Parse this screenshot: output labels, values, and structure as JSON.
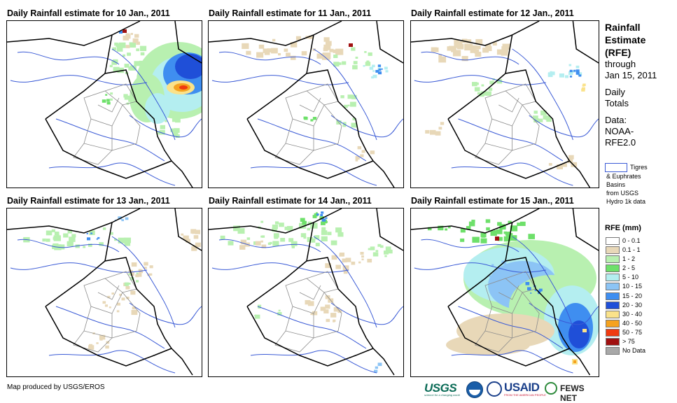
{
  "panels": [
    {
      "title": "Daily Rainfall estimate for 10 Jan., 2011"
    },
    {
      "title": "Daily Rainfall estimate for 11 Jan., 2011"
    },
    {
      "title": "Daily Rainfall estimate for 12 Jan., 2011"
    },
    {
      "title": "Daily Rainfall estimate for 13 Jan., 2011"
    },
    {
      "title": "Daily Rainfall estimate for 14 Jan., 2011"
    },
    {
      "title": "Daily Rainfall estimate for 15 Jan., 2011"
    }
  ],
  "side": {
    "title1": "Rainfall",
    "title2": "Estimate",
    "title3": "(RFE)",
    "through": "through",
    "date": "Jan 15, 2011",
    "daily1": "Daily",
    "daily2": "Totals",
    "data1": "Data:",
    "data2": "NOAA-",
    "data3": "RFE2.0"
  },
  "basin_legend": {
    "line1": "Tigres",
    "line2": "& Euphrates",
    "line3": "Basins",
    "line4": "from USGS",
    "line5": "Hydro 1k data",
    "color": "#3b5bd6"
  },
  "legend": {
    "title": "RFE (mm)",
    "items": [
      {
        "label": "0 - 0.1",
        "color": "#ffffff"
      },
      {
        "label": "0.1 - 1",
        "color": "#e8d8b8"
      },
      {
        "label": "1 - 2",
        "color": "#b8f0b0"
      },
      {
        "label": "2 - 5",
        "color": "#6ee06a"
      },
      {
        "label": "5 - 10",
        "color": "#b4eef0"
      },
      {
        "label": "10 - 15",
        "color": "#8cc4f5"
      },
      {
        "label": "15 - 20",
        "color": "#3f8ef0"
      },
      {
        "label": "20 - 30",
        "color": "#1f4fd8"
      },
      {
        "label": "30 - 40",
        "color": "#fae28a"
      },
      {
        "label": "40 - 50",
        "color": "#f5a21f"
      },
      {
        "label": "50 - 75",
        "color": "#f03a10"
      },
      {
        "label": "> 75",
        "color": "#a01010"
      },
      {
        "label": "No Data",
        "color": "#a8a8a8"
      }
    ]
  },
  "footer": "Map produced by USGS/EROS",
  "logos": {
    "usgs": "USGS",
    "usgs_tagline": "science for a changing world",
    "usaid": "USAID",
    "usaid_tagline": "FROM THE AMERICAN PEOPLE",
    "fews": "FEWS NET",
    "icons": [
      "usgs-logo",
      "noaa-logo",
      "usaid-seal",
      "fews-net-logo"
    ]
  }
}
